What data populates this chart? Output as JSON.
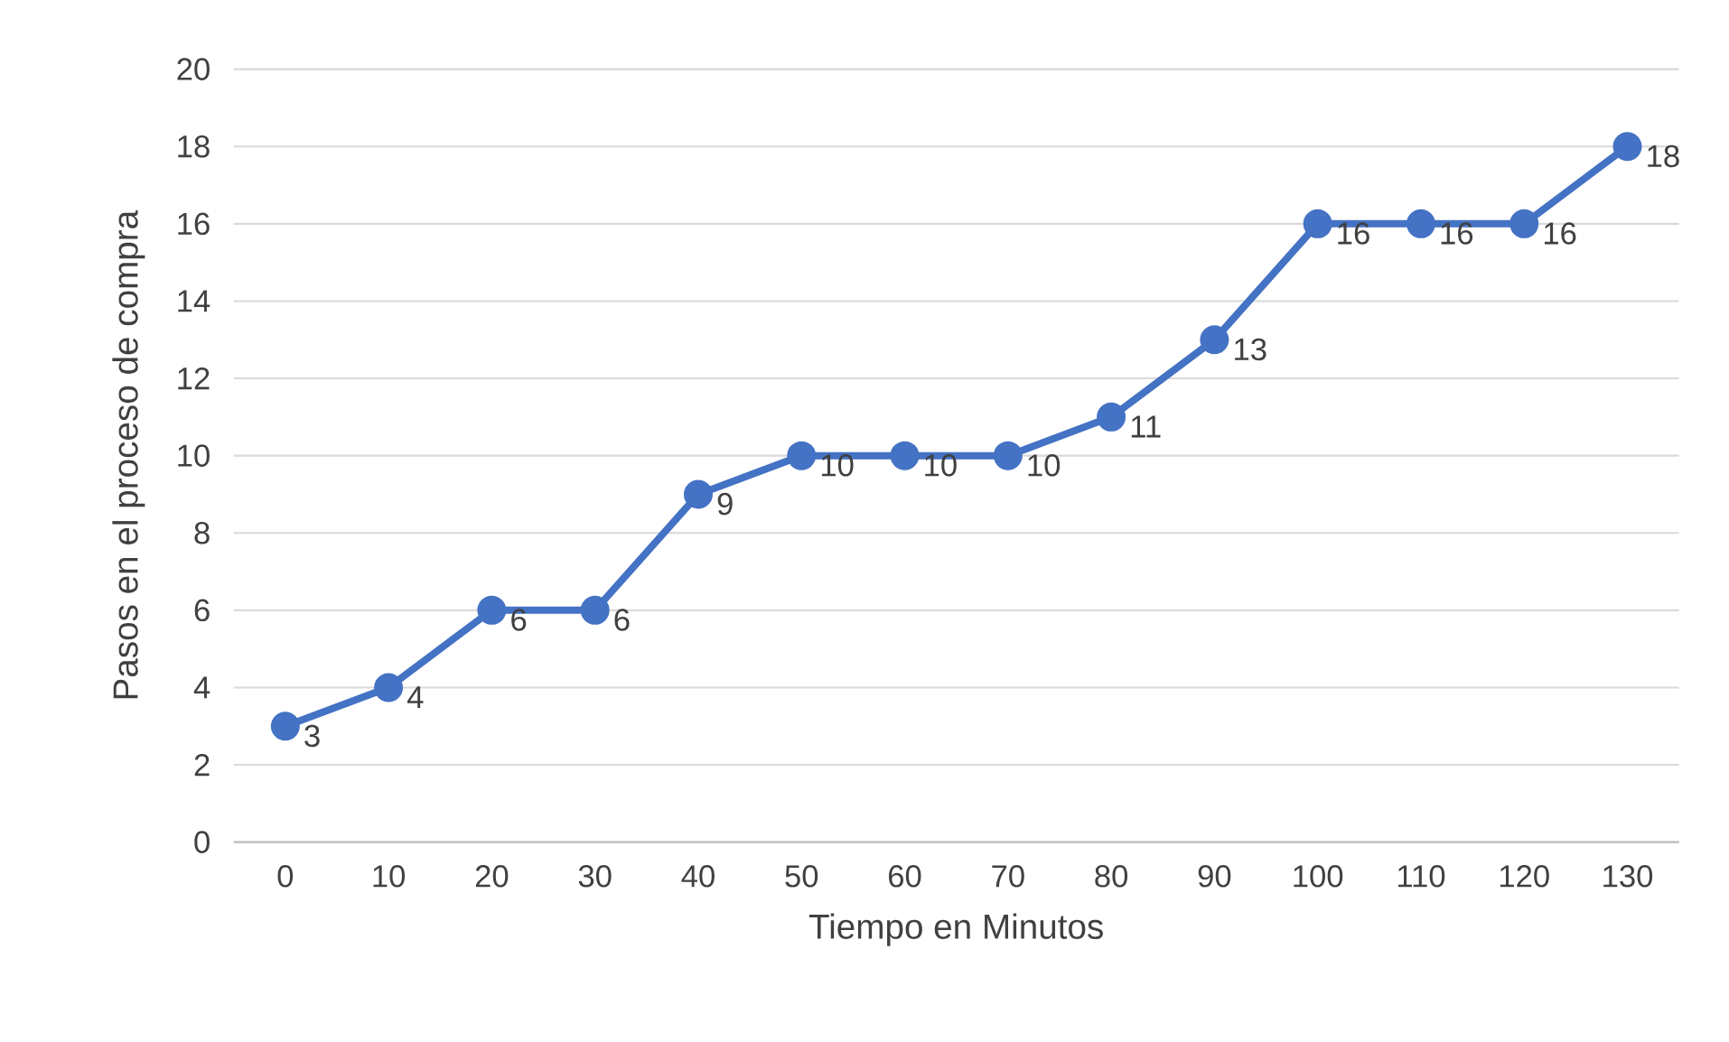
{
  "chart_data": {
    "type": "line",
    "xlabel": "Tiempo en Minutos",
    "ylabel": "Pasos en el proceso de compra",
    "categories": [
      "0",
      "10",
      "20",
      "30",
      "40",
      "50",
      "60",
      "70",
      "80",
      "90",
      "100",
      "110",
      "120",
      "130"
    ],
    "values": [
      3,
      4,
      6,
      6,
      9,
      10,
      10,
      10,
      11,
      13,
      16,
      16,
      16,
      18
    ],
    "color": "#4472c4",
    "marker": "circle",
    "line_style": "solid",
    "data_labels": true,
    "grid": "y",
    "ylim": [
      0,
      20
    ],
    "yticks": [
      0,
      2,
      4,
      6,
      8,
      10,
      12,
      14,
      16,
      18,
      20
    ]
  }
}
